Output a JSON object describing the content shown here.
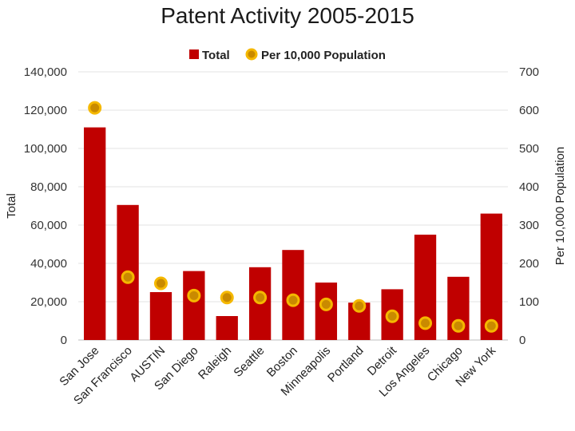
{
  "chart_data": {
    "type": "bar",
    "title": "Patent Activity 2005-2015",
    "categories": [
      "San Jose",
      "San Francisco",
      "AUSTIN",
      "San Diego",
      "Raleigh",
      "Seattle",
      "Boston",
      "Minneapolis",
      "Portland",
      "Detroit",
      "Los Angeles",
      "Chicago",
      "New York"
    ],
    "series": [
      {
        "name": "Total",
        "type": "bar",
        "axis": "left",
        "color": "#c00000",
        "values": [
          111000,
          70500,
          25000,
          36000,
          12500,
          38000,
          47000,
          30000,
          19500,
          26500,
          55000,
          33000,
          66000
        ]
      },
      {
        "name": "Per 10,000 Population",
        "type": "scatter",
        "axis": "right",
        "color": "#f5b800",
        "values": [
          606,
          164,
          148,
          116,
          111,
          111,
          104,
          93,
          89,
          62,
          44,
          37,
          37
        ]
      }
    ],
    "ylabel": "Total",
    "y2label": "Per 10,000 Population",
    "ylim": [
      0,
      140000
    ],
    "y2lim": [
      0,
      700
    ],
    "yticks": [
      "0",
      "20,000",
      "40,000",
      "60,000",
      "80,000",
      "100,000",
      "120,000",
      "140,000"
    ],
    "y2ticks": [
      "0",
      "100",
      "200",
      "300",
      "400",
      "500",
      "600",
      "700"
    ],
    "legend_position": "top",
    "grid": true
  }
}
